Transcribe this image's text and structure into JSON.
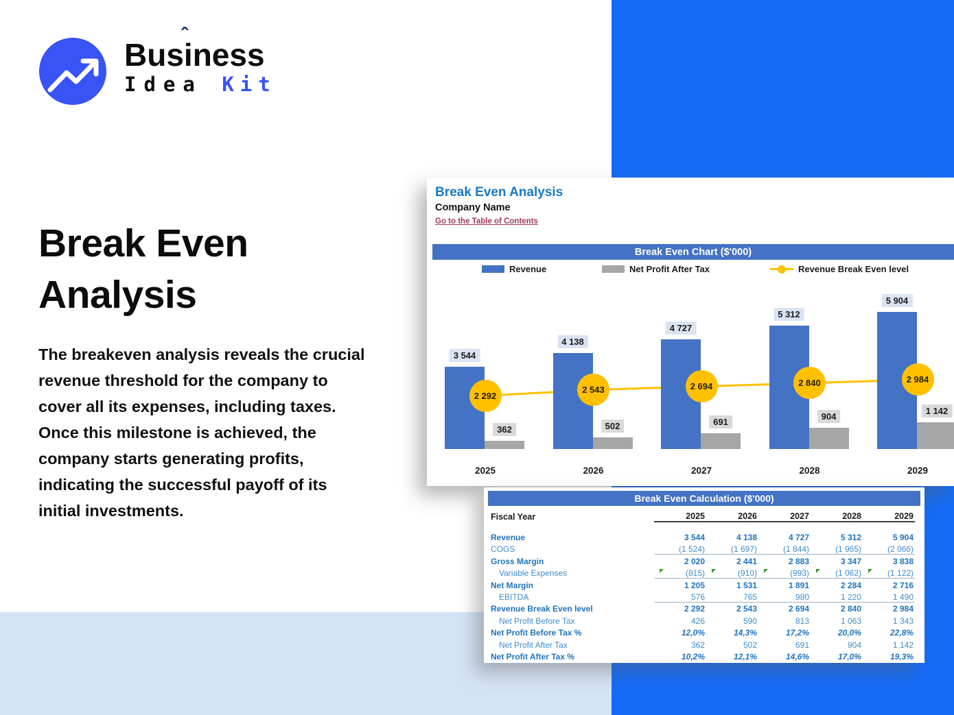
{
  "brand": {
    "part1": "Bus",
    "part2": "i",
    "part3": "ness",
    "caret": "ˆ",
    "line2_word1": "Idea",
    "line2_word2": "Kit",
    "accent_color": "#3853F6"
  },
  "hero": {
    "title_line1": "Break Even",
    "title_line2": "Analysis",
    "paragraph": "The breakeven analysis reveals the crucial revenue threshold for the company to cover all its expenses, including taxes. Once this milestone is achieved, the company starts generating profits, indicating the successful payoff of its initial investments."
  },
  "sheet": {
    "title": "Break Even Analysis",
    "company": "Company Name",
    "link": "Go to the Table of Contents"
  },
  "chart_data": {
    "type": "bar",
    "title": "Break Even Chart ($'000)",
    "categories": [
      "2025",
      "2026",
      "2027",
      "2028",
      "2029"
    ],
    "series": [
      {
        "name": "Revenue",
        "kind": "bar",
        "color": "#4472C4",
        "label_bg": "#DAE3F2",
        "values": [
          3544,
          4138,
          4727,
          5312,
          5904
        ],
        "labels": [
          "3 544",
          "4 138",
          "4 727",
          "5 312",
          "5 904"
        ]
      },
      {
        "name": "Net Profit After Tax",
        "kind": "bar",
        "color": "#A6A6A6",
        "label_bg": "#D9D9D9",
        "values": [
          362,
          502,
          691,
          904,
          1142
        ],
        "labels": [
          "362",
          "502",
          "691",
          "904",
          "1 142"
        ]
      },
      {
        "name": "Revenue Break Even level",
        "kind": "line",
        "color": "#FFC000",
        "values": [
          2292,
          2543,
          2694,
          2840,
          2984
        ],
        "labels": [
          "2 292",
          "2 543",
          "2 694",
          "2 840",
          "2 984"
        ]
      }
    ],
    "legend_position": "top",
    "value_axis_visible": false,
    "ylim": [
      0,
      7000
    ]
  },
  "calc_table": {
    "title": "Break Even Calculation ($'000)",
    "row_header": "Fiscal Year",
    "columns": [
      "2025",
      "2026",
      "2027",
      "2028",
      "2029"
    ],
    "rows": [
      {
        "label": "Revenue",
        "style": "bold",
        "values": [
          "3 544",
          "4 138",
          "4 727",
          "5 312",
          "5 904"
        ]
      },
      {
        "label": "COGS",
        "style": "regular",
        "values": [
          "(1 524)",
          "(1 697)",
          "(1 844)",
          "(1 965)",
          "(2 066)"
        ],
        "separator_below": true
      },
      {
        "label": "Gross Margin",
        "style": "bold",
        "values": [
          "2 020",
          "2 441",
          "2 883",
          "3 347",
          "3 838"
        ]
      },
      {
        "label": "Variable Expenses",
        "style": "regular-indent",
        "values": [
          "(815)",
          "(910)",
          "(993)",
          "(1 062)",
          "(1 122)"
        ],
        "flags": true,
        "separator_below": true
      },
      {
        "label": "Net Margin",
        "style": "bold",
        "values": [
          "1 205",
          "1 531",
          "1 891",
          "2 284",
          "2 716"
        ]
      },
      {
        "label": "EBITDA",
        "style": "regular-indent",
        "values": [
          "576",
          "765",
          "980",
          "1 220",
          "1 490"
        ],
        "separator_below": true
      },
      {
        "label": "Revenue Break Even level",
        "style": "bold",
        "values": [
          "2 292",
          "2 543",
          "2 694",
          "2 840",
          "2 984"
        ]
      },
      {
        "label": "Net Profit Before Tax",
        "style": "regular-indent",
        "values": [
          "426",
          "590",
          "813",
          "1 063",
          "1 343"
        ]
      },
      {
        "label": "Net Profit Before Tax %",
        "style": "bold-italic",
        "values": [
          "12,0%",
          "14,3%",
          "17,2%",
          "20,0%",
          "22,8%"
        ]
      },
      {
        "label": "Net Profit After Tax",
        "style": "regular-indent",
        "values": [
          "362",
          "502",
          "691",
          "904",
          "1 142"
        ]
      },
      {
        "label": "Net Profit After Tax %",
        "style": "bold-italic",
        "values": [
          "10,2%",
          "12,1%",
          "14,6%",
          "17,0%",
          "19,3%"
        ]
      }
    ]
  },
  "colors": {
    "right_panel": "#146BF7",
    "bottom_left_panel": "#D4E3F5",
    "header_bar": "#4472C4",
    "sheet_title": "#1878C6",
    "link": "#A03A5E",
    "bar_blue": "#4472C4",
    "bar_gray": "#A6A6A6",
    "line_yellow": "#FFC000"
  }
}
